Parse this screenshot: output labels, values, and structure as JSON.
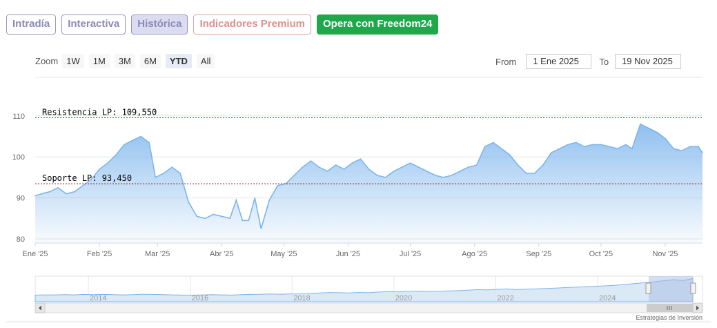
{
  "tabs": [
    {
      "label": "Intradía",
      "style": "normal"
    },
    {
      "label": "Interactiva",
      "style": "normal"
    },
    {
      "label": "Histórica",
      "style": "active"
    },
    {
      "label": "Indicadores Premium",
      "style": "premium"
    },
    {
      "label": "Opera con Freedom24",
      "style": "cta"
    }
  ],
  "zoom": {
    "label": "Zoom",
    "buttons": [
      "1W",
      "1M",
      "3M",
      "6M",
      "YTD",
      "All"
    ],
    "selected": "YTD"
  },
  "range": {
    "from_label": "From",
    "from_value": "1 Ene 2025",
    "to_label": "To",
    "to_value": "19 Nov 2025"
  },
  "credit": "Estrategias de Inversión",
  "colors": {
    "line": "#7cb5ec",
    "resistance": "#2e7d32",
    "support": "#8b1a1a",
    "tab_border": "#9a97c2",
    "premium": "#e08f8f",
    "cta": "#1ea84a"
  },
  "chart_data": {
    "type": "area",
    "xlabel": "",
    "ylabel": "",
    "ylim": [
      80,
      110
    ],
    "y_ticks": [
      80,
      90,
      100,
      110
    ],
    "x_tick_labels": [
      "Ene '25",
      "Feb '25",
      "Mar '25",
      "Abr '25",
      "May '25",
      "Jun '25",
      "Jul '25",
      "Ago '25",
      "Sep '25",
      "Oct '25",
      "Nov '25"
    ],
    "grid": true,
    "series": [
      {
        "x": [
          "2025-01-01",
          "2025-01-04",
          "2025-01-08",
          "2025-01-12",
          "2025-01-16",
          "2025-01-20",
          "2025-01-24",
          "2025-01-28",
          "2025-02-01",
          "2025-02-05",
          "2025-02-09",
          "2025-02-13",
          "2025-02-17",
          "2025-02-21",
          "2025-02-25",
          "2025-02-28",
          "2025-03-04",
          "2025-03-08",
          "2025-03-12",
          "2025-03-16",
          "2025-03-20",
          "2025-03-24",
          "2025-03-28",
          "2025-04-01",
          "2025-04-05",
          "2025-04-08",
          "2025-04-11",
          "2025-04-14",
          "2025-04-17",
          "2025-04-20",
          "2025-04-24",
          "2025-04-28",
          "2025-05-02",
          "2025-05-06",
          "2025-05-10",
          "2025-05-14",
          "2025-05-18",
          "2025-05-22",
          "2025-05-26",
          "2025-05-30",
          "2025-06-03",
          "2025-06-07",
          "2025-06-11",
          "2025-06-15",
          "2025-06-19",
          "2025-06-23",
          "2025-06-27",
          "2025-07-01",
          "2025-07-05",
          "2025-07-09",
          "2025-07-13",
          "2025-07-17",
          "2025-07-21",
          "2025-07-25",
          "2025-07-29",
          "2025-08-02",
          "2025-08-06",
          "2025-08-10",
          "2025-08-14",
          "2025-08-18",
          "2025-08-22",
          "2025-08-26",
          "2025-08-30",
          "2025-09-03",
          "2025-09-07",
          "2025-09-11",
          "2025-09-15",
          "2025-09-19",
          "2025-09-23",
          "2025-09-27",
          "2025-10-01",
          "2025-10-05",
          "2025-10-09",
          "2025-10-13",
          "2025-10-16",
          "2025-10-20",
          "2025-10-24",
          "2025-10-28",
          "2025-11-01",
          "2025-11-05",
          "2025-11-09",
          "2025-11-13",
          "2025-11-17",
          "2025-11-19"
        ],
        "values": [
          90.5,
          91.0,
          91.5,
          92.5,
          91.0,
          91.5,
          93.0,
          94.5,
          97.0,
          98.5,
          100.5,
          103.0,
          104.0,
          105.0,
          103.5,
          95.0,
          96.0,
          97.5,
          96.0,
          89.0,
          85.5,
          85.0,
          86.0,
          85.5,
          85.0,
          89.5,
          84.5,
          84.5,
          90.0,
          82.5,
          89.5,
          93.0,
          93.5,
          95.5,
          97.5,
          99.0,
          97.5,
          96.5,
          98.0,
          97.0,
          98.5,
          99.5,
          97.0,
          95.5,
          95.0,
          96.5,
          97.5,
          98.5,
          97.5,
          96.5,
          95.5,
          95.0,
          95.5,
          96.5,
          97.5,
          98.0,
          102.5,
          103.5,
          102.0,
          100.5,
          98.0,
          96.0,
          96.0,
          98.0,
          101.0,
          102.0,
          103.0,
          103.5,
          102.5,
          103.0,
          103.0,
          102.5,
          102.0,
          103.0,
          102.0,
          108.0,
          107.0,
          106.0,
          104.5,
          102.0,
          101.5,
          102.5,
          102.5,
          101.0
        ]
      }
    ],
    "reference_lines": [
      {
        "label": "Resistencia LP: 109,550",
        "value": 109.55
      },
      {
        "label": "Soporte LP: 93,450",
        "value": 93.45
      }
    ],
    "navigator": {
      "x_tick_labels": [
        "2014",
        "2016",
        "2018",
        "2020",
        "2022",
        "2024"
      ],
      "values": [
        30,
        31,
        31,
        32,
        31,
        33,
        32,
        33,
        32,
        31,
        32,
        34,
        33,
        32,
        31,
        30,
        30,
        31,
        32,
        31,
        30,
        32,
        33,
        34,
        35,
        34,
        35,
        36,
        38,
        40,
        42,
        41,
        40,
        42,
        41,
        44,
        46,
        45,
        47,
        48,
        46,
        47,
        49,
        50,
        52,
        55,
        54,
        56,
        58,
        55,
        57,
        58,
        60,
        62,
        64,
        66,
        68,
        70,
        72,
        74,
        78,
        82,
        86,
        90,
        95,
        100,
        96,
        105
      ]
    }
  }
}
